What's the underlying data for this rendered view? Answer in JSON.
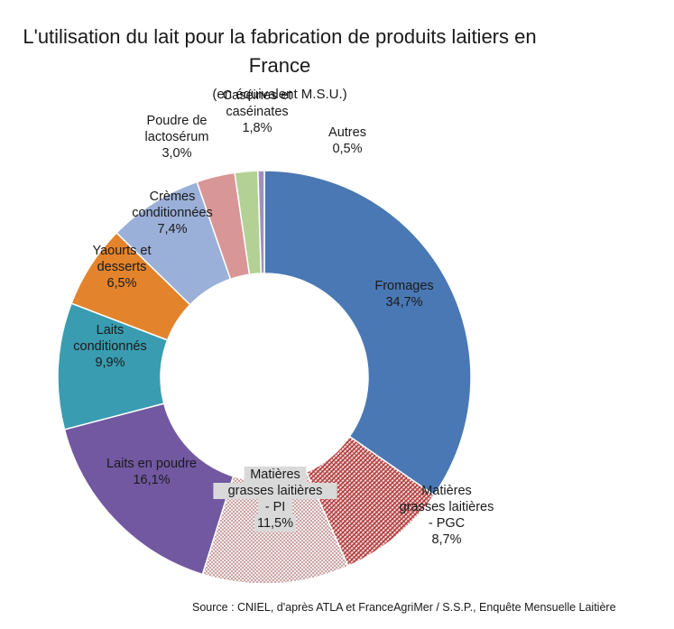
{
  "chart_data": {
    "type": "pie",
    "title": "L'utilisation du lait pour la fabrication de produits laitiers en France",
    "subtitle": "(en équivalent M.S.U.)",
    "slices": [
      {
        "label": [
          "Fromages"
        ],
        "value": 34.7,
        "value_label": "34,7%",
        "color": "#4a78b4"
      },
      {
        "label": [
          "Matières",
          "grasses laitières",
          "- PGC"
        ],
        "value": 8.7,
        "value_label": "8,7%",
        "color": "#b23a3a",
        "pattern": "hatch"
      },
      {
        "label": [
          "Matières",
          "grasses laitières",
          "- PI"
        ],
        "value": 11.5,
        "value_label": "11,5%",
        "color": "#c98080",
        "pattern": "dots"
      },
      {
        "label": [
          "Laits en poudre"
        ],
        "value": 16.1,
        "value_label": "16,1%",
        "color": "#7158a0"
      },
      {
        "label": [
          "Laits",
          "conditionnés"
        ],
        "value": 9.9,
        "value_label": "9,9%",
        "color": "#3a9cb0"
      },
      {
        "label": [
          "Yaourts et",
          "desserts"
        ],
        "value": 6.5,
        "value_label": "6,5%",
        "color": "#e3842c"
      },
      {
        "label": [
          "Crèmes",
          "conditionnées"
        ],
        "value": 7.4,
        "value_label": "7,4%",
        "color": "#9bb0d8"
      },
      {
        "label": [
          "Poudre de",
          "lactosérum"
        ],
        "value": 3.0,
        "value_label": "3,0%",
        "color": "#d99696"
      },
      {
        "label": [
          "Caséines et",
          "caséinates"
        ],
        "value": 1.8,
        "value_label": "1,8%",
        "color": "#b3d195"
      },
      {
        "label": [
          "Autres"
        ],
        "value": 0.5,
        "value_label": "0,5%",
        "color": "#a090c0"
      }
    ],
    "source": "Source : CNIEL, d'après ATLA et FranceAgriMer / S.S.P., Enquête Mensuelle Laitière"
  }
}
